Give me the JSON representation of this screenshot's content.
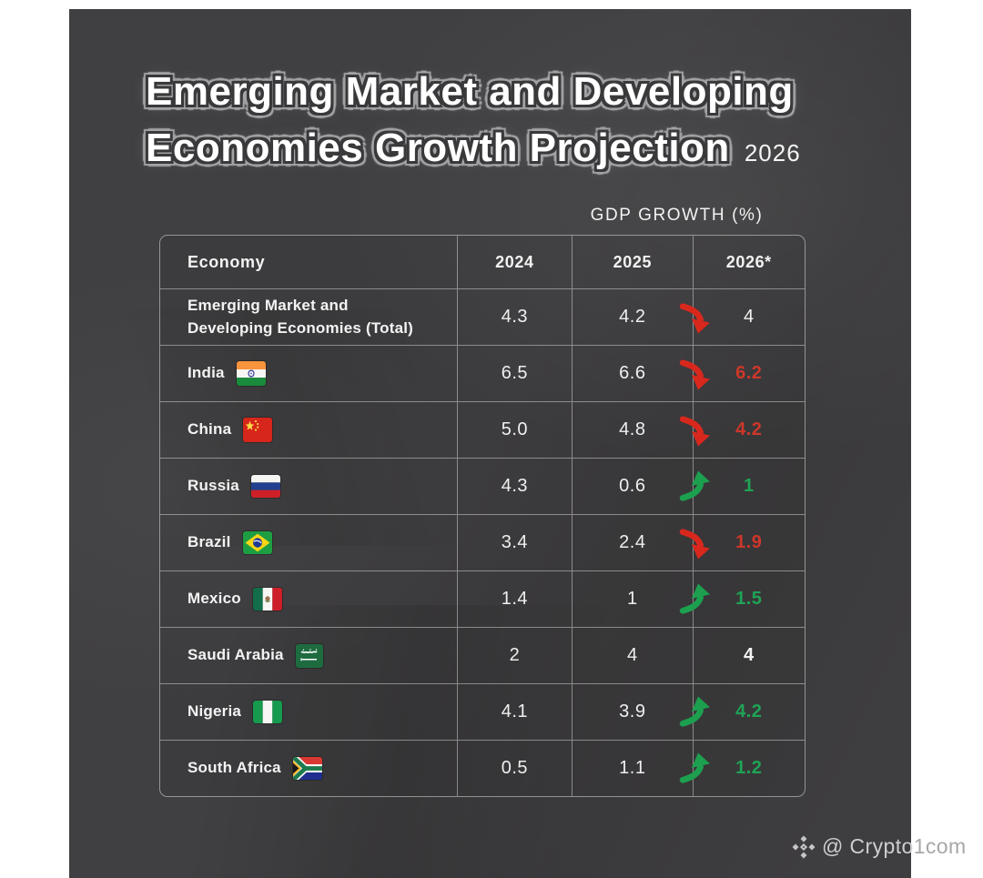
{
  "title": {
    "line1": "Emerging Market and Developing",
    "line2": "Economies Growth Projection",
    "year": "2026"
  },
  "table": {
    "caption": "GDP GROWTH (%)",
    "columns": [
      "Economy",
      "2024",
      "2025",
      "2026*"
    ],
    "rows": [
      {
        "economy": "Emerging Market and Developing Economies (Total)",
        "flag": null,
        "y2024": "4.3",
        "y2025": "4.2",
        "trend": "down",
        "y2026": "4",
        "y2026_color": "white"
      },
      {
        "economy": "India",
        "flag": "india",
        "y2024": "6.5",
        "y2025": "6.6",
        "trend": "down",
        "y2026": "6.2",
        "y2026_color": "red"
      },
      {
        "economy": "China",
        "flag": "china",
        "y2024": "5.0",
        "y2025": "4.8",
        "trend": "down",
        "y2026": "4.2",
        "y2026_color": "red"
      },
      {
        "economy": "Russia",
        "flag": "russia",
        "y2024": "4.3",
        "y2025": "0.6",
        "trend": "up",
        "y2026": "1",
        "y2026_color": "green"
      },
      {
        "economy": "Brazil",
        "flag": "brazil",
        "y2024": "3.4",
        "y2025": "2.4",
        "trend": "down",
        "y2026": "1.9",
        "y2026_color": "red"
      },
      {
        "economy": "Mexico",
        "flag": "mexico",
        "y2024": "1.4",
        "y2025": "1",
        "trend": "up",
        "y2026": "1.5",
        "y2026_color": "green"
      },
      {
        "economy": "Saudi Arabia",
        "flag": "saudi-arabia",
        "y2024": "2",
        "y2025": "4",
        "trend": "none",
        "y2026": "4",
        "y2026_color": "white"
      },
      {
        "economy": "Nigeria",
        "flag": "nigeria",
        "y2024": "4.1",
        "y2025": "3.9",
        "trend": "up",
        "y2026": "4.2",
        "y2026_color": "green"
      },
      {
        "economy": "South Africa",
        "flag": "south-africa",
        "y2024": "0.5",
        "y2025": "1.1",
        "trend": "up",
        "y2026": "1.2",
        "y2026_color": "green"
      }
    ]
  },
  "footer": {
    "handle": "@ Crypto",
    "handle_suffix": "1com",
    "logo_icon": "crypto-diamond-icon"
  },
  "icons": {
    "trend_down": "hand-drawn red arrow curving down-right",
    "trend_up": "hand-drawn green arrow curving up-right",
    "footer_logo": "diamond made of five diamonds",
    "flags": [
      "india",
      "china",
      "russia",
      "brazil",
      "mexico",
      "saudi-arabia",
      "nigeria",
      "south-africa"
    ]
  },
  "colors": {
    "page_bg": "#ffffff",
    "card_bg": "#3e3d3f",
    "table_line": "#dedede",
    "text": "#f3f3f3",
    "trend_down": "#d8281d",
    "trend_up": "#1ca04f",
    "value_red": "#cd372a",
    "value_green": "#1fa355"
  },
  "chart_data": {
    "type": "table",
    "title": "Emerging Market and Developing Economies Growth Projection 2026",
    "subtitle": "GDP GROWTH (%)",
    "columns": [
      "Economy",
      "2024",
      "2025",
      "2026*"
    ],
    "rows": [
      {
        "economy": "Emerging Market and Developing Economies (Total)",
        "2024": 4.3,
        "2025": 4.2,
        "2026": 4.0,
        "trend_2026": "down"
      },
      {
        "economy": "India",
        "2024": 6.5,
        "2025": 6.6,
        "2026": 6.2,
        "trend_2026": "down"
      },
      {
        "economy": "China",
        "2024": 5.0,
        "2025": 4.8,
        "2026": 4.2,
        "trend_2026": "down"
      },
      {
        "economy": "Russia",
        "2024": 4.3,
        "2025": 0.6,
        "2026": 1.0,
        "trend_2026": "up"
      },
      {
        "economy": "Brazil",
        "2024": 3.4,
        "2025": 2.4,
        "2026": 1.9,
        "trend_2026": "down"
      },
      {
        "economy": "Mexico",
        "2024": 1.4,
        "2025": 1.0,
        "2026": 1.5,
        "trend_2026": "up"
      },
      {
        "economy": "Saudi Arabia",
        "2024": 2.0,
        "2025": 4.0,
        "2026": 4.0,
        "trend_2026": "flat"
      },
      {
        "economy": "Nigeria",
        "2024": 4.1,
        "2025": 3.9,
        "2026": 4.2,
        "trend_2026": "up"
      },
      {
        "economy": "South Africa",
        "2024": 0.5,
        "2025": 1.1,
        "2026": 1.2,
        "trend_2026": "up"
      }
    ]
  }
}
